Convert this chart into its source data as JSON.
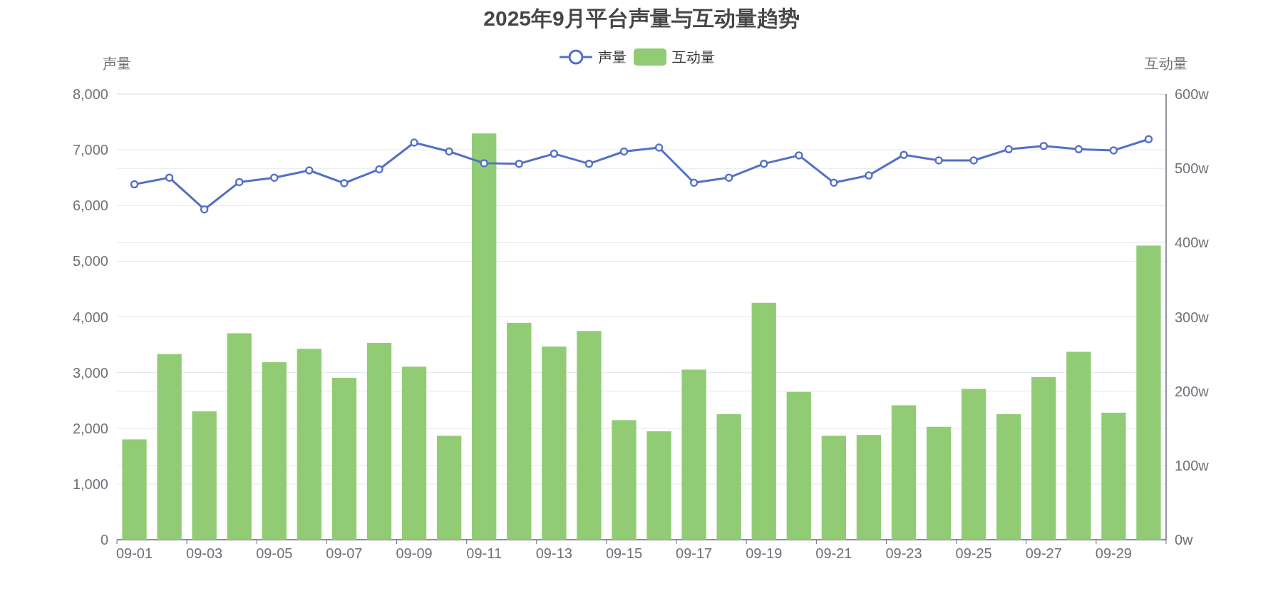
{
  "chart_data": {
    "type": "bar",
    "title": "2025年9月平台声量与互动量趋势",
    "categories": [
      "09-01",
      null,
      "09-03",
      null,
      "09-05",
      null,
      "09-07",
      null,
      "09-09",
      null,
      "09-11",
      null,
      "09-13",
      null,
      "09-15",
      null,
      "09-17",
      null,
      "09-19",
      null,
      "09-21",
      null,
      "09-23",
      null,
      "09-25",
      null,
      "09-27",
      null,
      "09-29",
      null
    ],
    "series": [
      {
        "name": "声量",
        "type": "line",
        "color": "#5470c6",
        "values": [
          6380,
          6500,
          5930,
          6420,
          6500,
          6630,
          6400,
          6650,
          7130,
          6970,
          6760,
          6750,
          6930,
          6750,
          6970,
          7040,
          6410,
          6500,
          6750,
          6900,
          6410,
          6540,
          6910,
          6810,
          6810,
          7010,
          7070,
          7010,
          6990,
          7190
        ]
      },
      {
        "name": "互动量",
        "axis": "y2",
        "color": "#91cc75",
        "values": [
          135,
          250,
          173,
          278,
          239,
          257,
          218,
          265,
          233,
          140,
          547,
          292,
          260,
          281,
          161,
          146,
          229,
          169,
          319,
          199,
          140,
          141,
          181,
          152,
          203,
          169,
          219,
          253,
          171,
          396
        ]
      }
    ],
    "ylabel": "声量",
    "y2label": "互动量",
    "ylim": [
      0,
      8000
    ],
    "yticks": [
      {
        "value": 0,
        "label": "0"
      },
      {
        "value": 1000,
        "label": "1,000"
      },
      {
        "value": 2000,
        "label": "2,000"
      },
      {
        "value": 3000,
        "label": "3,000"
      },
      {
        "value": 4000,
        "label": "4,000"
      },
      {
        "value": 5000,
        "label": "5,000"
      },
      {
        "value": 6000,
        "label": "6,000"
      },
      {
        "value": 7000,
        "label": "7,000"
      },
      {
        "value": 8000,
        "label": "8,000"
      }
    ],
    "y2lim": [
      0,
      600
    ],
    "y2ticks": [
      {
        "value": 0,
        "label": "0w"
      },
      {
        "value": 100,
        "label": "100w"
      },
      {
        "value": 200,
        "label": "200w"
      },
      {
        "value": 300,
        "label": "300w"
      },
      {
        "value": 400,
        "label": "400w"
      },
      {
        "value": 500,
        "label": "500w"
      },
      {
        "value": 600,
        "label": "600w"
      }
    ],
    "grid": "y",
    "legend": "top",
    "marker": "circle"
  }
}
